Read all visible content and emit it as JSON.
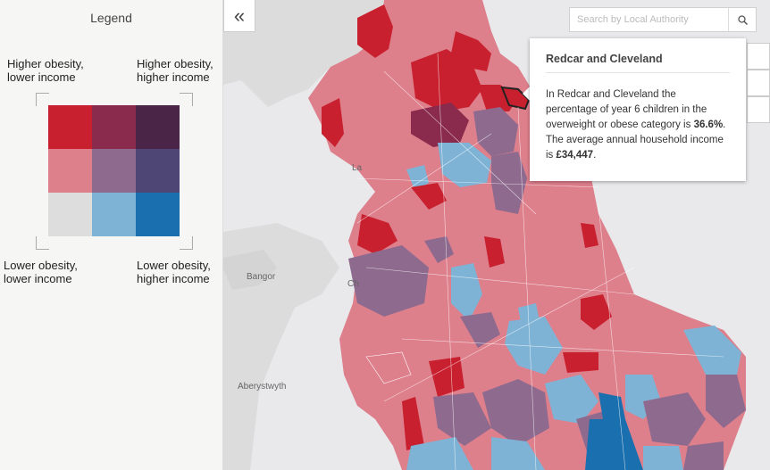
{
  "legend": {
    "title": "Legend",
    "top_left": "Higher obesity,\nlower income",
    "top_right": "Higher obesity,\nhigher income",
    "bottom_left": "Lower obesity,\nlower income",
    "bottom_right": "Lower obesity,\nhigher income",
    "colors": [
      "#c8202f",
      "#8a2a4d",
      "#4a2547",
      "#de7f8c",
      "#8d6a8e",
      "#4e4776",
      "#dddddd",
      "#7fb3d6",
      "#1a6fae"
    ]
  },
  "search": {
    "placeholder": "Search by Local Authority"
  },
  "popup": {
    "title": "Redcar and Cleveland",
    "text_1": "In Redcar and Cleveland the percentage of year 6 children in the overweight or obese category is ",
    "obesity_value": "36.6%",
    "text_2": ". The average annual household income is ",
    "income_value": "£34,447",
    "text_3": "."
  },
  "places": {
    "bangor": "Bangor",
    "aberystwyth": "Aberystwyth",
    "lancaster_partial": "La",
    "chester_partial": "Ch"
  },
  "icons": {
    "collapse": "double-chevron-left-icon",
    "search": "search-icon"
  }
}
